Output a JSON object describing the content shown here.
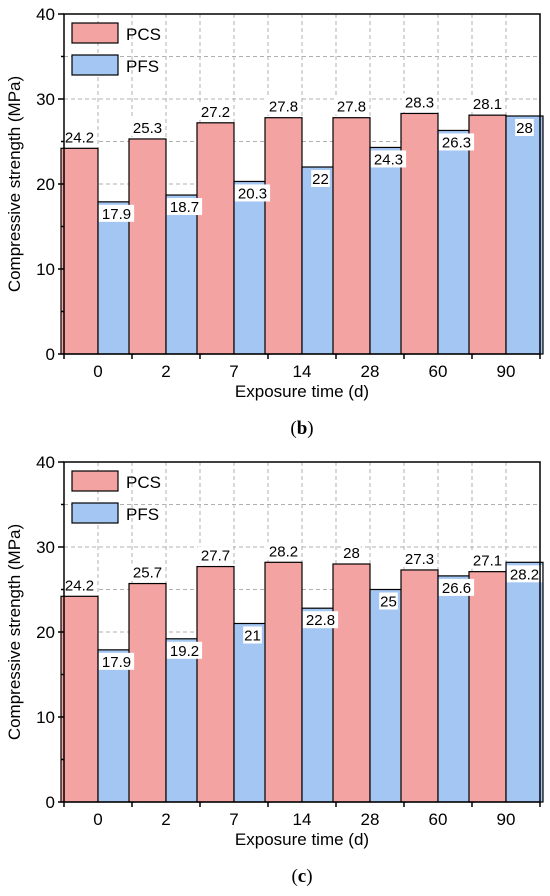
{
  "colors": {
    "pcs": "#F4A3A3",
    "pfs": "#A4C6F2",
    "grid": "#B0B0B0",
    "axis": "#000000"
  },
  "chart_data": [
    {
      "type": "bar",
      "panel_label": "b",
      "categories": [
        "0",
        "2",
        "7",
        "14",
        "28",
        "60",
        "90"
      ],
      "series": [
        {
          "name": "PCS",
          "values": [
            24.2,
            25.3,
            27.2,
            27.8,
            27.8,
            28.3,
            28.1
          ],
          "labels": [
            "24.2",
            "25.3",
            "27.2",
            "27.8",
            "27.8",
            "28.3",
            "28.1"
          ]
        },
        {
          "name": "PFS",
          "values": [
            17.9,
            18.7,
            20.3,
            22,
            24.3,
            26.3,
            28
          ],
          "labels": [
            "17.9",
            "18.7",
            "20.3",
            "22",
            "24.3",
            "26.3",
            "28"
          ]
        }
      ],
      "xlabel": "Exposure time (d)",
      "ylabel": "Compressive strength (MPa)",
      "ylim": [
        0,
        40
      ],
      "yticks": [
        "0",
        "10",
        "20",
        "30",
        "40"
      ],
      "grid": true,
      "legend": "top-left"
    },
    {
      "type": "bar",
      "panel_label": "c",
      "categories": [
        "0",
        "2",
        "7",
        "14",
        "28",
        "60",
        "90"
      ],
      "series": [
        {
          "name": "PCS",
          "values": [
            24.2,
            25.7,
            27.7,
            28.2,
            28,
            27.3,
            27.1
          ],
          "labels": [
            "24.2",
            "25.7",
            "27.7",
            "28.2",
            "28",
            "27.3",
            "27.1"
          ]
        },
        {
          "name": "PFS",
          "values": [
            17.9,
            19.2,
            21,
            22.8,
            25,
            26.6,
            28.2
          ],
          "labels": [
            "17.9",
            "19.2",
            "21",
            "22.8",
            "25",
            "26.6",
            "28.2"
          ]
        }
      ],
      "xlabel": "Exposure time (d)",
      "ylabel": "Compressive strength (MPa)",
      "ylim": [
        0,
        40
      ],
      "yticks": [
        "0",
        "10",
        "20",
        "30",
        "40"
      ],
      "grid": true,
      "legend": "top-left"
    }
  ]
}
